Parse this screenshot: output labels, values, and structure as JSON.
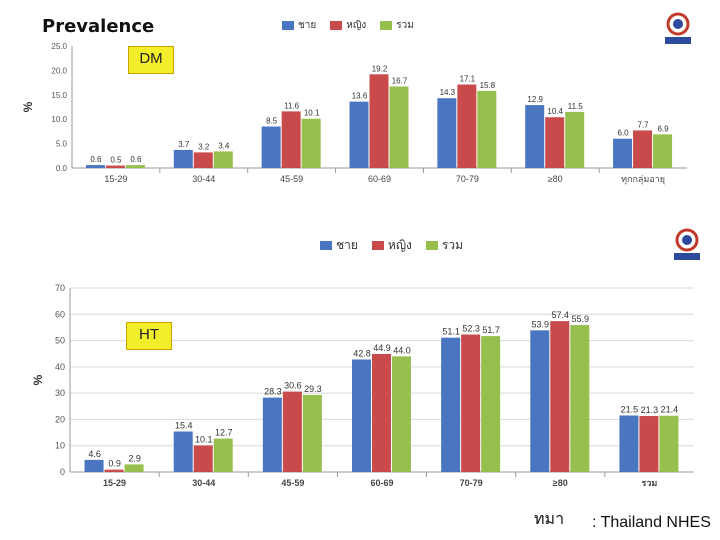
{
  "page_title": "Prevalence",
  "source": {
    "prefix": "ทมา",
    "text": ": Thailand NHES"
  },
  "colors": {
    "male": "#4a76c1",
    "female": "#c94a4a",
    "total": "#97bf4d"
  },
  "legend": [
    {
      "label": "ชาย",
      "color": "#4a76c1"
    },
    {
      "label": "หญิง",
      "color": "#c94a4a"
    },
    {
      "label": "รวม",
      "color": "#97bf4d"
    }
  ],
  "chart_data": [
    {
      "type": "bar",
      "title": "DM",
      "ylabel": "%",
      "ylim": [
        0,
        25
      ],
      "yticks": [
        "0.0",
        "5.0",
        "10.0",
        "15.0",
        "20.0",
        "25.0"
      ],
      "categories": [
        "15-29",
        "30-44",
        "45-59",
        "60-69",
        "70-79",
        "≥80",
        "ทุกกลุ่มอายุ"
      ],
      "series": [
        {
          "name": "ชาย",
          "values": [
            0.6,
            3.7,
            8.5,
            13.6,
            14.3,
            12.9,
            6.0
          ],
          "labels": [
            "0.6",
            "3.7",
            "8.5",
            "13.6",
            "14.3",
            "12.9",
            "6.0"
          ]
        },
        {
          "name": "หญิง",
          "values": [
            0.5,
            3.2,
            11.6,
            19.2,
            17.1,
            10.4,
            7.7
          ],
          "labels": [
            "0.5",
            "3.2",
            "11.6",
            "19.2",
            "17.1",
            "10.4",
            "7.7"
          ]
        },
        {
          "name": "รวม",
          "values": [
            0.6,
            3.4,
            10.1,
            16.7,
            15.8,
            11.5,
            6.9
          ],
          "labels": [
            "0.6",
            "3.4",
            "10.1",
            "16.7",
            "15.8",
            "11.5",
            "6.9"
          ]
        }
      ],
      "grid": false,
      "legend_position": "top-center"
    },
    {
      "type": "bar",
      "title": "HT",
      "ylabel": "%",
      "ylim": [
        0,
        70
      ],
      "yticks": [
        "0",
        "10",
        "20",
        "30",
        "40",
        "50",
        "60",
        "70"
      ],
      "categories": [
        "15-29",
        "30-44",
        "45-59",
        "60-69",
        "70-79",
        "≥80",
        "รวม"
      ],
      "series": [
        {
          "name": "ชาย",
          "values": [
            4.6,
            15.4,
            28.3,
            42.8,
            51.1,
            53.9,
            21.5
          ],
          "labels": [
            "4.6",
            "15.4",
            "28.3",
            "42.8",
            "51.1",
            "53.9",
            "21.5"
          ]
        },
        {
          "name": "หญิง",
          "values": [
            0.9,
            10.1,
            30.6,
            44.9,
            52.3,
            57.4,
            21.3
          ],
          "labels": [
            "0.9",
            "10.1",
            "30.6",
            "44.9",
            "52.3",
            "57.4",
            "21.3"
          ]
        },
        {
          "name": "รวม",
          "values": [
            2.9,
            12.7,
            29.3,
            44.0,
            51.7,
            55.9,
            21.4
          ],
          "labels": [
            "2.9",
            "12.7",
            "29.3",
            "44.0",
            "51.7",
            "55.9",
            "21.4"
          ]
        }
      ],
      "grid": true,
      "legend_position": "top-center"
    }
  ]
}
